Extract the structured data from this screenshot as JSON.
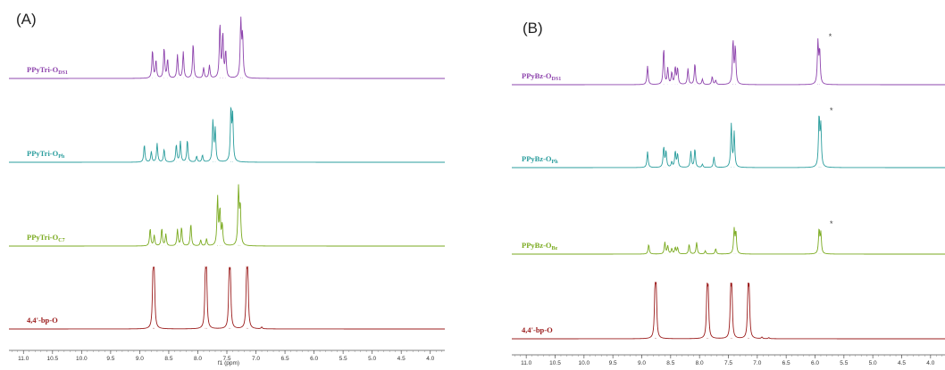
{
  "chart_data": [
    {
      "type": "line",
      "panel_label": "(A)",
      "xlabel": "f1 (ppm)",
      "x_reversed": true,
      "xlim": [
        11.25,
        3.75
      ],
      "ticks": [
        "11.0",
        "10.5",
        "10.0",
        "9.5",
        "9.0",
        "8.5",
        "8.0",
        "7.5",
        "7.0",
        "6.5",
        "6.0",
        "5.5",
        "5.0",
        "4.5",
        "4.0"
      ],
      "colors": {
        "PPyTri-O_DS1": "#8e44ad",
        "PPyTri-O_Ph": "#2a9d9d",
        "PPyTri-O_C7": "#7aaa1f",
        "4,4'-bp-O": "#9b1c1c"
      },
      "series": [
        {
          "name": "PPyTri-O_DS1",
          "label_main": "PPyTri-O",
          "label_sub": "DS1",
          "color_key": "PPyTri-O_DS1",
          "annotation": "",
          "peaks": [
            [
              8.78,
              0.48
            ],
            [
              8.72,
              0.3
            ],
            [
              8.58,
              0.52
            ],
            [
              8.52,
              0.32
            ],
            [
              8.35,
              0.4
            ],
            [
              8.25,
              0.45
            ],
            [
              8.08,
              0.6
            ],
            [
              7.9,
              0.18
            ],
            [
              7.8,
              0.22
            ],
            [
              7.62,
              0.92
            ],
            [
              7.57,
              0.75
            ],
            [
              7.52,
              0.45
            ],
            [
              7.26,
              1.0
            ],
            [
              7.23,
              0.7
            ]
          ]
        },
        {
          "name": "PPyTri-O_Ph",
          "label_main": "PPyTri-O",
          "label_sub": "Ph",
          "color_key": "PPyTri-O_Ph",
          "annotation": "",
          "peaks": [
            [
              8.92,
              0.3
            ],
            [
              8.8,
              0.18
            ],
            [
              8.7,
              0.32
            ],
            [
              8.58,
              0.22
            ],
            [
              8.37,
              0.3
            ],
            [
              8.3,
              0.35
            ],
            [
              8.18,
              0.38
            ],
            [
              8.02,
              0.1
            ],
            [
              7.92,
              0.12
            ],
            [
              7.74,
              0.7
            ],
            [
              7.7,
              0.55
            ],
            [
              7.43,
              0.9
            ],
            [
              7.4,
              0.75
            ]
          ]
        },
        {
          "name": "PPyTri-O_C7",
          "label_main": "PPyTri-O",
          "label_sub": "C7",
          "color_key": "PPyTri-O_C7",
          "annotation": "",
          "peaks": [
            [
              8.82,
              0.3
            ],
            [
              8.75,
              0.18
            ],
            [
              8.62,
              0.3
            ],
            [
              8.55,
              0.2
            ],
            [
              8.35,
              0.28
            ],
            [
              8.28,
              0.32
            ],
            [
              8.12,
              0.38
            ],
            [
              7.95,
              0.1
            ],
            [
              7.85,
              0.12
            ],
            [
              7.66,
              0.82
            ],
            [
              7.62,
              0.6
            ],
            [
              7.58,
              0.35
            ],
            [
              7.3,
              1.0
            ],
            [
              7.27,
              0.65
            ]
          ]
        },
        {
          "name": "4,4'-bp-O",
          "label_main": "4,4'-bp-O",
          "label_sub": "",
          "color_key": "4,4'-bp-O",
          "annotation": "",
          "peaks": [
            [
              8.77,
              0.95
            ],
            [
              8.75,
              0.9
            ],
            [
              7.87,
              0.9
            ],
            [
              7.85,
              0.85
            ],
            [
              7.46,
              0.88
            ],
            [
              7.44,
              0.82
            ],
            [
              7.16,
              0.9
            ],
            [
              7.14,
              0.85
            ],
            [
              6.9,
              0.03
            ]
          ]
        }
      ]
    },
    {
      "type": "line",
      "panel_label": "(B)",
      "xlabel": "",
      "x_reversed": true,
      "xlim": [
        11.25,
        3.75
      ],
      "ticks": [
        "11.0",
        "10.5",
        "10.0",
        "9.5",
        "9.0",
        "8.5",
        "8.0",
        "7.5",
        "7.0",
        "6.5",
        "6.0",
        "5.5",
        "5.0",
        "4.5",
        "4.0"
      ],
      "colors": {
        "PPyBz-O_DS1": "#8e44ad",
        "PPyBz-O_Ph": "#2a9d9d",
        "PPyBz-O_Bz": "#7aaa1f",
        "4,4'-bp-O": "#9b1c1c"
      },
      "series": [
        {
          "name": "PPyBz-O_DS1",
          "label_main": "PPyBz-O",
          "label_sub": "DS1",
          "color_key": "PPyBz-O_DS1",
          "annotation": "*",
          "peaks": [
            [
              8.9,
              0.35
            ],
            [
              8.62,
              0.68
            ],
            [
              8.55,
              0.3
            ],
            [
              8.48,
              0.22
            ],
            [
              8.42,
              0.32
            ],
            [
              8.38,
              0.3
            ],
            [
              8.2,
              0.3
            ],
            [
              8.08,
              0.4
            ],
            [
              7.95,
              0.1
            ],
            [
              7.78,
              0.15
            ],
            [
              7.72,
              0.08
            ],
            [
              7.42,
              0.82
            ],
            [
              7.38,
              0.7
            ],
            [
              5.95,
              0.78
            ],
            [
              5.92,
              0.62
            ]
          ]
        },
        {
          "name": "PPyBz-O_Ph",
          "label_main": "PPyBz-O",
          "label_sub": "Ph",
          "color_key": "PPyBz-O_Ph",
          "annotation": "*",
          "peaks": [
            [
              8.9,
              0.3
            ],
            [
              8.62,
              0.38
            ],
            [
              8.58,
              0.3
            ],
            [
              8.48,
              0.1
            ],
            [
              8.42,
              0.3
            ],
            [
              8.38,
              0.25
            ],
            [
              8.15,
              0.3
            ],
            [
              8.08,
              0.35
            ],
            [
              7.95,
              0.06
            ],
            [
              7.75,
              0.2
            ],
            [
              7.45,
              0.8
            ],
            [
              7.4,
              0.65
            ],
            [
              5.93,
              0.95
            ],
            [
              5.9,
              0.75
            ]
          ]
        },
        {
          "name": "PPyBz-O_Bz",
          "label_main": "PPyBz-O",
          "label_sub": "Bz",
          "color_key": "PPyBz-O_Bz",
          "annotation": "*",
          "peaks": [
            [
              8.88,
              0.18
            ],
            [
              8.6,
              0.22
            ],
            [
              8.55,
              0.15
            ],
            [
              8.48,
              0.1
            ],
            [
              8.42,
              0.12
            ],
            [
              8.38,
              0.12
            ],
            [
              8.18,
              0.18
            ],
            [
              8.05,
              0.22
            ],
            [
              7.9,
              0.06
            ],
            [
              7.72,
              0.1
            ],
            [
              7.4,
              0.45
            ],
            [
              7.37,
              0.4
            ],
            [
              5.93,
              0.45
            ],
            [
              5.9,
              0.38
            ]
          ]
        },
        {
          "name": "4,4'-bp-O",
          "label_main": "4,4'-bp-O",
          "label_sub": "",
          "color_key": "4,4'-bp-O",
          "annotation": "",
          "peaks": [
            [
              8.77,
              0.9
            ],
            [
              8.75,
              0.85
            ],
            [
              7.87,
              0.85
            ],
            [
              7.85,
              0.8
            ],
            [
              7.46,
              0.85
            ],
            [
              7.44,
              0.8
            ],
            [
              7.16,
              0.85
            ],
            [
              7.14,
              0.8
            ],
            [
              6.92,
              0.03
            ],
            [
              6.8,
              0.02
            ]
          ]
        }
      ]
    }
  ]
}
